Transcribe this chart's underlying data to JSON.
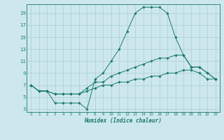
{
  "xlabel": "Humidex (Indice chaleur)",
  "bg_color": "#cde8ec",
  "grid_color": "#aacdd3",
  "line_color": "#1a7a6e",
  "xlim": [
    -0.5,
    23.5
  ],
  "ylim": [
    2.5,
    20.5
  ],
  "xticks": [
    0,
    1,
    2,
    3,
    4,
    5,
    6,
    7,
    8,
    9,
    10,
    11,
    12,
    13,
    14,
    15,
    16,
    17,
    18,
    19,
    20,
    21,
    22,
    23
  ],
  "yticks": [
    3,
    5,
    7,
    9,
    11,
    13,
    15,
    17,
    19
  ],
  "series": [
    {
      "x": [
        0,
        1,
        2,
        3,
        4,
        5,
        6,
        7,
        8,
        9,
        10,
        11,
        12,
        13,
        14,
        15,
        16,
        17,
        18,
        19,
        20,
        21,
        22,
        23
      ],
      "y": [
        7,
        6,
        6,
        4,
        4,
        4,
        4,
        3,
        8,
        9,
        11,
        13,
        16,
        19,
        20,
        20,
        20,
        19,
        15,
        12,
        10,
        10,
        9,
        8
      ]
    },
    {
      "x": [
        0,
        1,
        2,
        3,
        4,
        5,
        6,
        7,
        8,
        9,
        10,
        11,
        12,
        13,
        14,
        15,
        16,
        17,
        18,
        19,
        20,
        21,
        22,
        23
      ],
      "y": [
        7,
        6,
        6,
        5.5,
        5.5,
        5.5,
        5.5,
        6.5,
        7.5,
        7.5,
        8.5,
        9,
        9.5,
        10,
        10.5,
        11,
        11.5,
        11.5,
        12,
        12,
        10,
        10,
        9,
        8
      ]
    },
    {
      "x": [
        0,
        1,
        2,
        3,
        4,
        5,
        6,
        7,
        8,
        9,
        10,
        11,
        12,
        13,
        14,
        15,
        16,
        17,
        18,
        19,
        20,
        21,
        22,
        23
      ],
      "y": [
        7,
        6,
        6,
        5.5,
        5.5,
        5.5,
        5.5,
        6,
        6.5,
        7,
        7,
        7.5,
        7.5,
        8,
        8,
        8.5,
        8.5,
        9,
        9,
        9.5,
        9.5,
        9,
        8,
        8
      ]
    }
  ]
}
